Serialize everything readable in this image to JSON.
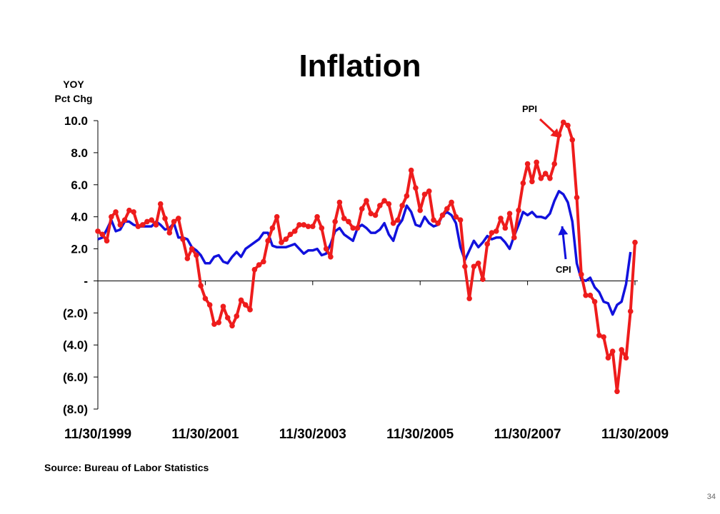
{
  "slide": {
    "page_number": "34"
  },
  "chart_data": {
    "type": "line",
    "title": "Inflation",
    "ylabel": "YOY\nPct Chg",
    "ylabel_lines": [
      "YOY",
      "Pct Chg"
    ],
    "xlabel": "",
    "ylim": [
      -8,
      10
    ],
    "yticks": [
      10,
      8,
      6,
      4,
      2,
      0,
      -2,
      -4,
      -6,
      -8
    ],
    "ytick_labels": [
      "10.0",
      "8.0",
      "6.0",
      "4.0",
      "2.0",
      "-",
      "(2.0)",
      "(4.0)",
      "(6.0)",
      "(8.0)"
    ],
    "x_tick_labels": [
      "11/30/1999",
      "11/30/2001",
      "11/30/2003",
      "11/30/2005",
      "11/30/2007",
      "11/30/2009"
    ],
    "x_start_label": "11/30/1999",
    "x_step": "month",
    "grid": false,
    "colors": {
      "PPI": "#ee1c1c",
      "CPI": "#1111dd"
    },
    "series": [
      {
        "name": "PPI",
        "markers": true,
        "values": [
          3.1,
          2.9,
          2.5,
          4.0,
          4.3,
          3.5,
          3.8,
          4.4,
          4.3,
          3.4,
          3.5,
          3.7,
          3.8,
          3.5,
          4.8,
          3.9,
          3.0,
          3.7,
          3.9,
          2.6,
          1.4,
          2.0,
          1.6,
          -0.3,
          -1.1,
          -1.5,
          -2.7,
          -2.6,
          -1.6,
          -2.3,
          -2.8,
          -2.2,
          -1.2,
          -1.5,
          -1.8,
          0.7,
          1.0,
          1.2,
          2.5,
          3.3,
          4.0,
          2.4,
          2.6,
          2.9,
          3.1,
          3.5,
          3.5,
          3.4,
          3.4,
          4.0,
          3.3,
          2.0,
          1.5,
          3.7,
          4.9,
          3.9,
          3.7,
          3.3,
          3.3,
          4.5,
          5.0,
          4.2,
          4.1,
          4.7,
          5.0,
          4.8,
          3.6,
          3.8,
          4.7,
          5.3,
          6.9,
          5.8,
          4.4,
          5.4,
          5.6,
          3.8,
          3.6,
          4.1,
          4.5,
          4.9,
          4.0,
          3.8,
          0.9,
          -1.1,
          0.9,
          1.1,
          0.1,
          2.3,
          3.0,
          3.1,
          3.9,
          3.3,
          4.2,
          2.7,
          4.4,
          6.1,
          7.3,
          6.2,
          7.4,
          6.4,
          6.7,
          6.4,
          7.3,
          9.1,
          9.9,
          9.7,
          8.8,
          5.2,
          0.4,
          -0.9,
          -0.9,
          -1.3,
          -3.4,
          -3.5,
          -4.8,
          -4.4,
          -6.9,
          -4.3,
          -4.8,
          -1.9,
          2.4
        ]
      },
      {
        "name": "CPI",
        "markers": false,
        "values": [
          2.6,
          2.7,
          3.2,
          3.8,
          3.1,
          3.2,
          3.7,
          3.7,
          3.5,
          3.4,
          3.4,
          3.4,
          3.4,
          3.7,
          3.5,
          3.2,
          3.3,
          3.6,
          2.7,
          2.7,
          2.6,
          2.1,
          1.9,
          1.6,
          1.1,
          1.1,
          1.5,
          1.6,
          1.2,
          1.1,
          1.5,
          1.8,
          1.5,
          2.0,
          2.2,
          2.4,
          2.6,
          3.0,
          3.0,
          2.2,
          2.1,
          2.1,
          2.1,
          2.2,
          2.3,
          2.0,
          1.7,
          1.9,
          1.9,
          2.0,
          1.6,
          1.7,
          2.3,
          3.1,
          3.3,
          2.9,
          2.7,
          2.5,
          3.3,
          3.5,
          3.3,
          3.0,
          3.0,
          3.2,
          3.6,
          2.9,
          2.5,
          3.4,
          3.8,
          4.7,
          4.3,
          3.5,
          3.4,
          4.0,
          3.6,
          3.4,
          3.5,
          4.1,
          4.3,
          4.1,
          3.6,
          2.1,
          1.3,
          1.9,
          2.5,
          2.1,
          2.4,
          2.8,
          2.6,
          2.7,
          2.7,
          2.4,
          2.0,
          2.8,
          3.5,
          4.3,
          4.1,
          4.3,
          4.0,
          4.0,
          3.9,
          4.2,
          5.0,
          5.6,
          5.4,
          4.9,
          3.7,
          1.1,
          0.1,
          0.0,
          0.2,
          -0.4,
          -0.7,
          -1.3,
          -1.4,
          -2.1,
          -1.5,
          -1.3,
          -0.2,
          1.8
        ]
      }
    ],
    "annotations": [
      {
        "text": "PPI",
        "color": "#ee1c1c",
        "arrow_to": "PPI"
      },
      {
        "text": "CPI",
        "color": "#1111dd",
        "arrow_to": "CPI"
      }
    ],
    "source": "Source: Bureau of Labor Statistics"
  }
}
